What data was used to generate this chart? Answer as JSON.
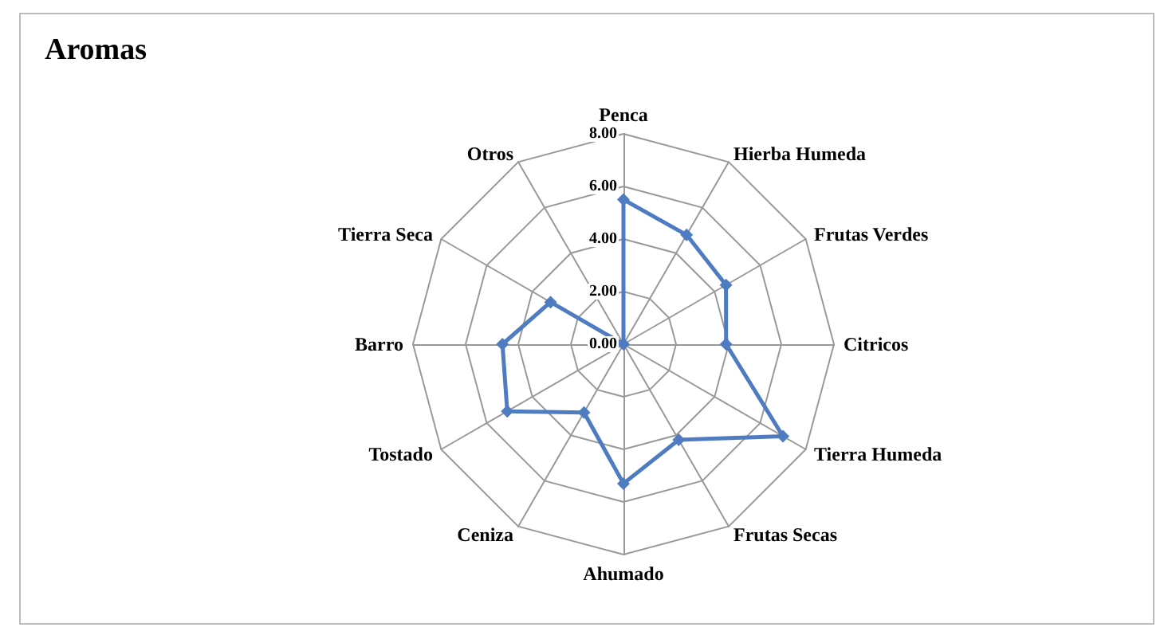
{
  "chart_data": {
    "type": "radar",
    "title": "Aromas",
    "categories": [
      "Penca",
      "Hierba Humeda",
      "Frutas Verdes",
      "Citricos",
      "Tierra Humeda",
      "Frutas Secas",
      "Ahumado",
      "Ceniza",
      "Tostado",
      "Barro",
      "Tierra Seca",
      "Otros"
    ],
    "series": [
      {
        "color": "#4f7cc0",
        "values": [
          5.5,
          4.8,
          4.5,
          3.9,
          7.0,
          4.2,
          5.3,
          3.0,
          5.1,
          4.6,
          3.2,
          0
        ]
      }
    ],
    "ylim": [
      0,
      8
    ],
    "yticks": [
      {
        "value": 0,
        "label": "0.00"
      },
      {
        "value": 2,
        "label": "2.00"
      },
      {
        "value": 4,
        "label": "4.00"
      },
      {
        "value": 6,
        "label": "6.00"
      },
      {
        "value": 8,
        "label": "8.00"
      }
    ],
    "marker": "diamond",
    "legend": false
  }
}
